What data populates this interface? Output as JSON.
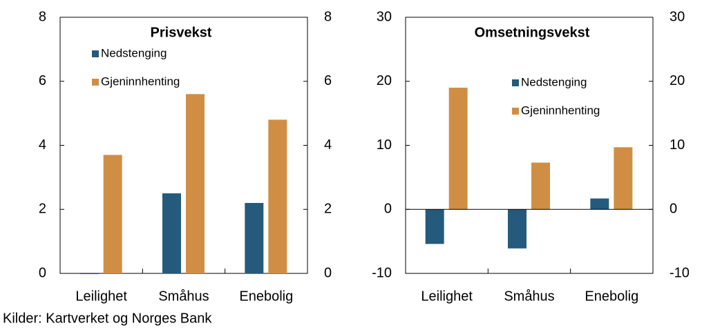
{
  "chart_data": [
    {
      "type": "bar",
      "title": "Prisvekst",
      "categories": [
        "Leilighet",
        "Småhus",
        "Enebolig"
      ],
      "series": [
        {
          "name": "Nedstenging",
          "color": "#245a7c",
          "values": [
            0,
            2.5,
            2.2
          ]
        },
        {
          "name": "Gjeninnhenting",
          "color": "#d08e44",
          "values": [
            3.7,
            5.6,
            4.8
          ]
        }
      ],
      "ylim": [
        0,
        8
      ],
      "yticks": [
        0,
        2,
        4,
        6,
        8
      ],
      "y2lim": [
        0,
        8
      ],
      "y2ticks": [
        0,
        2,
        4,
        6,
        8
      ]
    },
    {
      "type": "bar",
      "title": "Omsetningsvekst",
      "categories": [
        "Leilighet",
        "Småhus",
        "Enebolig"
      ],
      "series": [
        {
          "name": "Nedstenging",
          "color": "#245a7c",
          "values": [
            -5.4,
            -6.1,
            1.7
          ]
        },
        {
          "name": "Gjeninnhenting",
          "color": "#d08e44",
          "values": [
            19.0,
            7.3,
            9.7
          ]
        }
      ],
      "ylim": [
        -10,
        30
      ],
      "yticks": [
        -10,
        0,
        10,
        20,
        30
      ],
      "y2lim": [
        -10,
        30
      ],
      "y2ticks": [
        -10,
        0,
        10,
        20,
        30
      ]
    }
  ],
  "source": "Kilder: Kartverket og Norges Bank"
}
